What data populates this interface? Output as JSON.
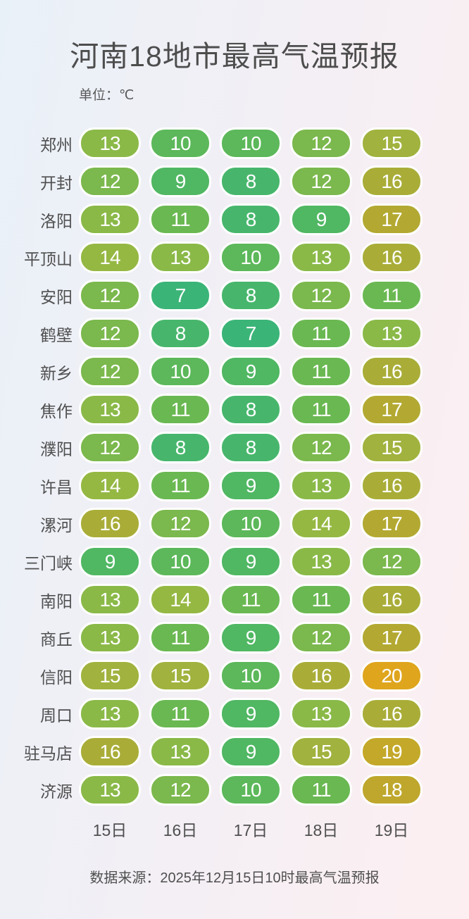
{
  "title": "河南18地市最高气温预报",
  "unit_label": "单位：℃",
  "source": "数据来源：2025年12月15日10时最高气温预报",
  "chart_data": {
    "type": "heatmap",
    "title": "河南18地市最高气温预报",
    "unit": "℃",
    "columns": [
      "15日",
      "16日",
      "17日",
      "18日",
      "19日"
    ],
    "rows": [
      {
        "city": "郑州",
        "temps": [
          13,
          10,
          10,
          12,
          15
        ]
      },
      {
        "city": "开封",
        "temps": [
          12,
          9,
          8,
          12,
          16
        ]
      },
      {
        "city": "洛阳",
        "temps": [
          13,
          11,
          8,
          9,
          17
        ]
      },
      {
        "city": "平顶山",
        "temps": [
          14,
          13,
          10,
          13,
          16
        ]
      },
      {
        "city": "安阳",
        "temps": [
          12,
          7,
          8,
          12,
          11
        ]
      },
      {
        "city": "鹤壁",
        "temps": [
          12,
          8,
          7,
          11,
          13
        ]
      },
      {
        "city": "新乡",
        "temps": [
          12,
          10,
          9,
          11,
          16
        ]
      },
      {
        "city": "焦作",
        "temps": [
          13,
          11,
          8,
          11,
          17
        ]
      },
      {
        "city": "濮阳",
        "temps": [
          12,
          8,
          8,
          12,
          15
        ]
      },
      {
        "city": "许昌",
        "temps": [
          14,
          11,
          9,
          13,
          16
        ]
      },
      {
        "city": "漯河",
        "temps": [
          16,
          12,
          10,
          14,
          17
        ]
      },
      {
        "city": "三门峡",
        "temps": [
          9,
          10,
          9,
          13,
          12
        ]
      },
      {
        "city": "南阳",
        "temps": [
          13,
          14,
          11,
          11,
          16
        ]
      },
      {
        "city": "商丘",
        "temps": [
          13,
          11,
          9,
          12,
          17
        ]
      },
      {
        "city": "信阳",
        "temps": [
          15,
          15,
          10,
          16,
          20
        ]
      },
      {
        "city": "周口",
        "temps": [
          13,
          11,
          9,
          13,
          16
        ]
      },
      {
        "city": "驻马店",
        "temps": [
          16,
          13,
          9,
          15,
          19
        ]
      },
      {
        "city": "济源",
        "temps": [
          13,
          12,
          10,
          11,
          18
        ]
      }
    ],
    "temp_colors": {
      "7": "#3bb478",
      "8": "#47b66c",
      "9": "#50b763",
      "10": "#5cb85a",
      "11": "#6ab852",
      "12": "#7bb84d",
      "13": "#8ab948",
      "14": "#95b843",
      "15": "#a1b23e",
      "16": "#a9ad38",
      "17": "#b3a932",
      "18": "#bea72c",
      "19": "#c4a829",
      "20": "#dfa51d"
    }
  }
}
